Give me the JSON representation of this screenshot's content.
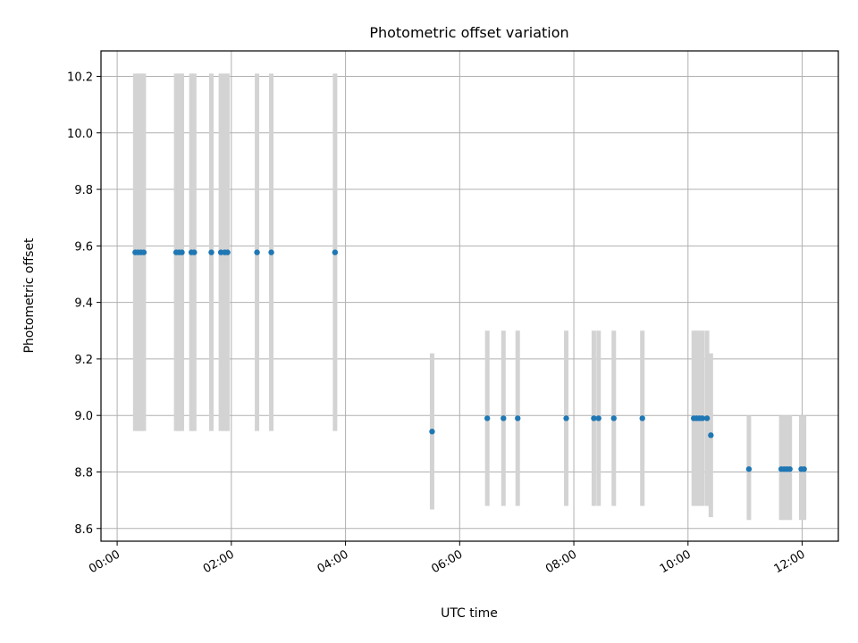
{
  "chart_data": {
    "type": "scatter",
    "title": "Photometric offset variation",
    "xlabel": "UTC time",
    "ylabel": "Photometric offset",
    "x_ticks": [
      "00:00",
      "02:00",
      "04:00",
      "06:00",
      "08:00",
      "10:00",
      "12:00"
    ],
    "y_ticks": [
      "8.6",
      "8.8",
      "9.0",
      "9.2",
      "9.4",
      "9.6",
      "9.8",
      "10.0",
      "10.2"
    ],
    "xlim": [
      "-00:17",
      "12:38"
    ],
    "ylim": [
      8.555,
      10.29
    ],
    "grid": true,
    "point_color": "#1f77b4",
    "errorbar_color": "#d3d3d3",
    "series": [
      {
        "points": [
          {
            "x": "00:19",
            "y": 9.577,
            "ylo": 8.945,
            "yhi": 10.21
          },
          {
            "x": "00:22",
            "y": 9.577,
            "ylo": 8.945,
            "yhi": 10.21
          },
          {
            "x": "00:25",
            "y": 9.577,
            "ylo": 8.945,
            "yhi": 10.21
          },
          {
            "x": "00:28",
            "y": 9.577,
            "ylo": 8.945,
            "yhi": 10.21
          },
          {
            "x": "01:02",
            "y": 9.577,
            "ylo": 8.945,
            "yhi": 10.21
          },
          {
            "x": "01:05",
            "y": 9.577,
            "ylo": 8.945,
            "yhi": 10.21
          },
          {
            "x": "01:08",
            "y": 9.577,
            "ylo": 8.945,
            "yhi": 10.21
          },
          {
            "x": "01:18",
            "y": 9.577,
            "ylo": 8.945,
            "yhi": 10.21
          },
          {
            "x": "01:21",
            "y": 9.577,
            "ylo": 8.945,
            "yhi": 10.21
          },
          {
            "x": "01:39",
            "y": 9.577,
            "ylo": 8.945,
            "yhi": 10.21
          },
          {
            "x": "01:49",
            "y": 9.577,
            "ylo": 8.945,
            "yhi": 10.21
          },
          {
            "x": "01:53",
            "y": 9.577,
            "ylo": 8.945,
            "yhi": 10.21
          },
          {
            "x": "01:56",
            "y": 9.577,
            "ylo": 8.945,
            "yhi": 10.21
          },
          {
            "x": "02:27",
            "y": 9.577,
            "ylo": 8.945,
            "yhi": 10.21
          },
          {
            "x": "02:42",
            "y": 9.577,
            "ylo": 8.945,
            "yhi": 10.21
          },
          {
            "x": "03:49",
            "y": 9.577,
            "ylo": 8.945,
            "yhi": 10.21
          },
          {
            "x": "05:31",
            "y": 8.943,
            "ylo": 8.667,
            "yhi": 9.22
          },
          {
            "x": "06:29",
            "y": 8.99,
            "ylo": 8.68,
            "yhi": 9.3
          },
          {
            "x": "06:46",
            "y": 8.99,
            "ylo": 8.68,
            "yhi": 9.3
          },
          {
            "x": "07:01",
            "y": 8.99,
            "ylo": 8.68,
            "yhi": 9.3
          },
          {
            "x": "07:52",
            "y": 8.99,
            "ylo": 8.68,
            "yhi": 9.3
          },
          {
            "x": "08:21",
            "y": 8.99,
            "ylo": 8.68,
            "yhi": 9.3
          },
          {
            "x": "08:26",
            "y": 8.99,
            "ylo": 8.68,
            "yhi": 9.3
          },
          {
            "x": "08:42",
            "y": 8.99,
            "ylo": 8.68,
            "yhi": 9.3
          },
          {
            "x": "09:12",
            "y": 8.99,
            "ylo": 8.68,
            "yhi": 9.3
          },
          {
            "x": "10:06",
            "y": 8.99,
            "ylo": 8.68,
            "yhi": 9.3
          },
          {
            "x": "10:09",
            "y": 8.99,
            "ylo": 8.68,
            "yhi": 9.3
          },
          {
            "x": "10:12",
            "y": 8.99,
            "ylo": 8.68,
            "yhi": 9.3
          },
          {
            "x": "10:15",
            "y": 8.99,
            "ylo": 8.68,
            "yhi": 9.3
          },
          {
            "x": "10:20",
            "y": 8.99,
            "ylo": 8.68,
            "yhi": 9.3
          },
          {
            "x": "10:24",
            "y": 8.93,
            "ylo": 8.64,
            "yhi": 9.22
          },
          {
            "x": "11:04",
            "y": 8.81,
            "ylo": 8.63,
            "yhi": 9.0
          },
          {
            "x": "11:38",
            "y": 8.81,
            "ylo": 8.63,
            "yhi": 9.0
          },
          {
            "x": "11:41",
            "y": 8.81,
            "ylo": 8.63,
            "yhi": 9.0
          },
          {
            "x": "11:44",
            "y": 8.81,
            "ylo": 8.63,
            "yhi": 9.0
          },
          {
            "x": "11:47",
            "y": 8.81,
            "ylo": 8.63,
            "yhi": 9.0
          },
          {
            "x": "11:59",
            "y": 8.81,
            "ylo": 8.63,
            "yhi": 9.0
          },
          {
            "x": "12:02",
            "y": 8.81,
            "ylo": 8.63,
            "yhi": 9.0
          }
        ]
      }
    ]
  }
}
